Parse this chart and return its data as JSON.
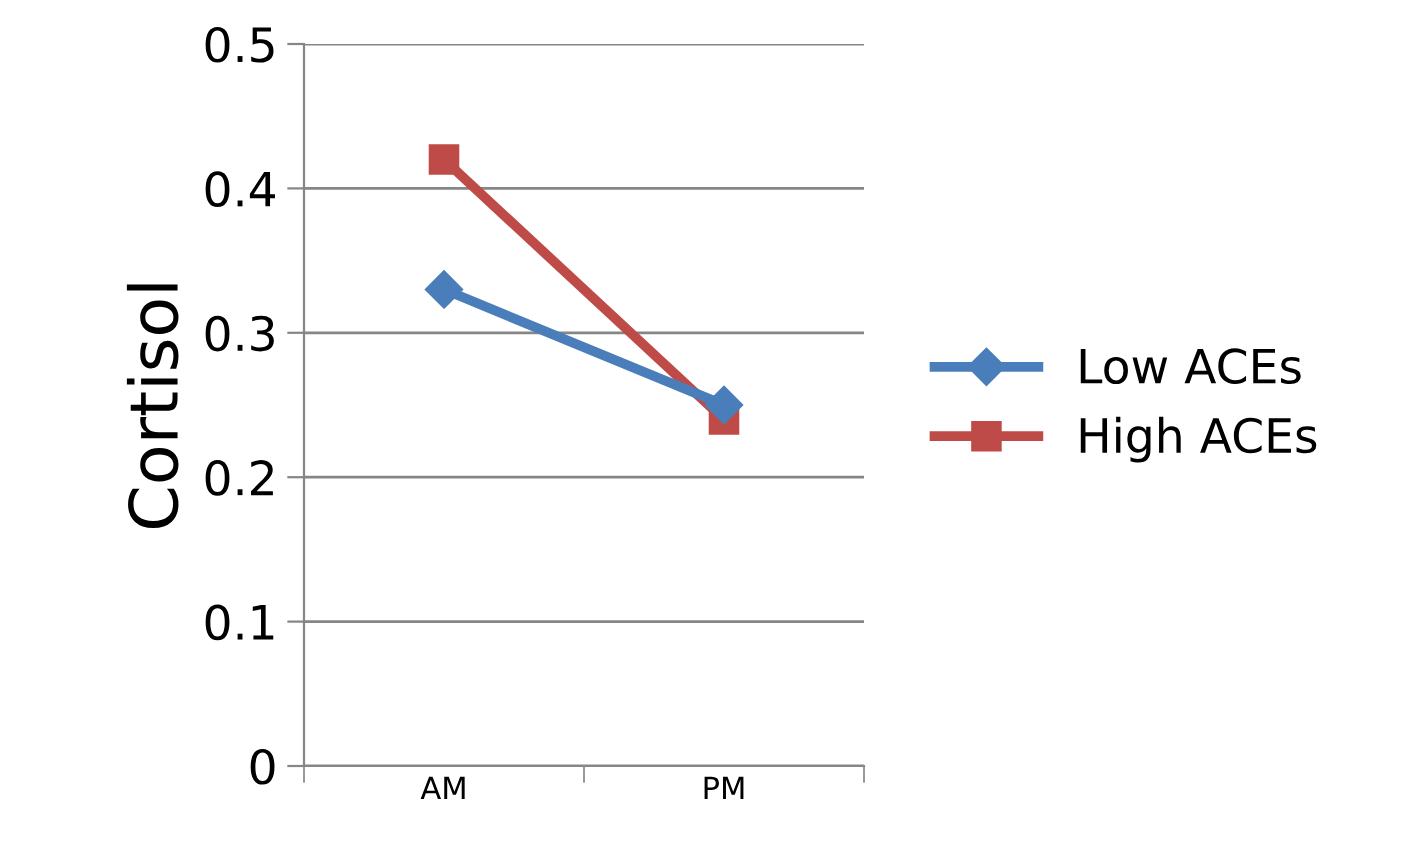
{
  "chart_data": {
    "type": "line",
    "ylabel": "Cortisol",
    "categories": [
      "AM",
      "PM"
    ],
    "series": [
      {
        "name": "Low ACEs",
        "color": "#4a7ebb",
        "marker": "diamond",
        "values": [
          0.33,
          0.25
        ]
      },
      {
        "name": "High ACEs",
        "color": "#be4b48",
        "marker": "square",
        "values": [
          0.42,
          0.24
        ]
      }
    ],
    "ylim": [
      0,
      0.5
    ],
    "yticks": [
      0,
      0.1,
      0.2,
      0.3,
      0.4,
      0.5
    ],
    "grid": "y",
    "legend": "right",
    "line_style": "solid"
  }
}
